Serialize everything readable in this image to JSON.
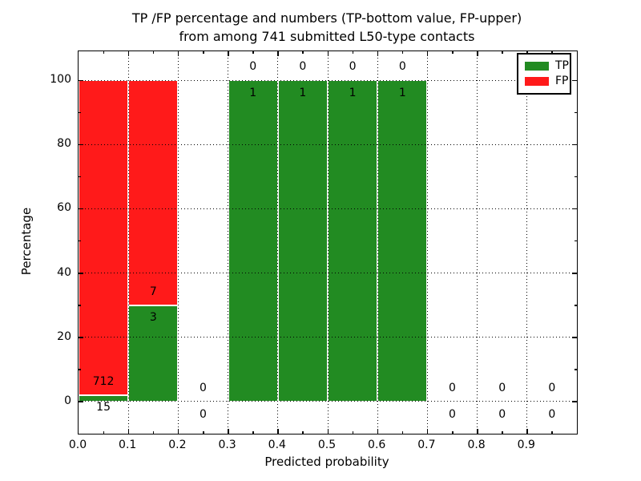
{
  "title": {
    "line1": "TP /FP percentage and numbers (TP-bottom value, FP-upper)",
    "line2": "from among 741 submitted L50-type contacts"
  },
  "axes": {
    "xlabel": "Predicted probability",
    "ylabel": "Percentage"
  },
  "legend": {
    "items": [
      {
        "label": "TP",
        "color": "#228b22"
      },
      {
        "label": "FP",
        "color": "#ff1a1a"
      }
    ]
  },
  "chart_data": {
    "type": "bar",
    "stacked": true,
    "orientation": "vertical",
    "title": "TP /FP percentage and numbers (TP-bottom value, FP-upper) from among 741 submitted L50-type contacts",
    "xlabel": "Predicted probability",
    "ylabel": "Percentage",
    "total_contacts": 741,
    "bin_edges": [
      0.0,
      0.1,
      0.2,
      0.3,
      0.4,
      0.5,
      0.6,
      0.7,
      0.8,
      0.9,
      1.0
    ],
    "series": [
      {
        "name": "TP",
        "color": "#228b22",
        "counts": [
          15,
          3,
          0,
          1,
          1,
          1,
          1,
          0,
          0,
          0
        ]
      },
      {
        "name": "FP",
        "color": "#ff1a1a",
        "counts": [
          712,
          7,
          0,
          0,
          0,
          0,
          0,
          0,
          0,
          0
        ]
      }
    ],
    "tp_percent_by_bin": [
      2.06,
      30.0,
      null,
      100.0,
      100.0,
      100.0,
      100.0,
      null,
      null,
      null
    ],
    "x_ticks": [
      0.0,
      0.1,
      0.2,
      0.3,
      0.4,
      0.5,
      0.6,
      0.7,
      0.8,
      0.9
    ],
    "x_minor_ticks": [
      0.05,
      0.15,
      0.25,
      0.35,
      0.45,
      0.55,
      0.65,
      0.75,
      0.85,
      0.95
    ],
    "y_ticks": [
      0,
      20,
      40,
      60,
      80,
      100
    ],
    "y_minor_ticks": [
      10,
      30,
      50,
      70,
      90
    ],
    "xlim": [
      0.0,
      1.0
    ],
    "ylim": [
      -10,
      109
    ],
    "grid": "dotted",
    "legend_position": "upper right"
  }
}
